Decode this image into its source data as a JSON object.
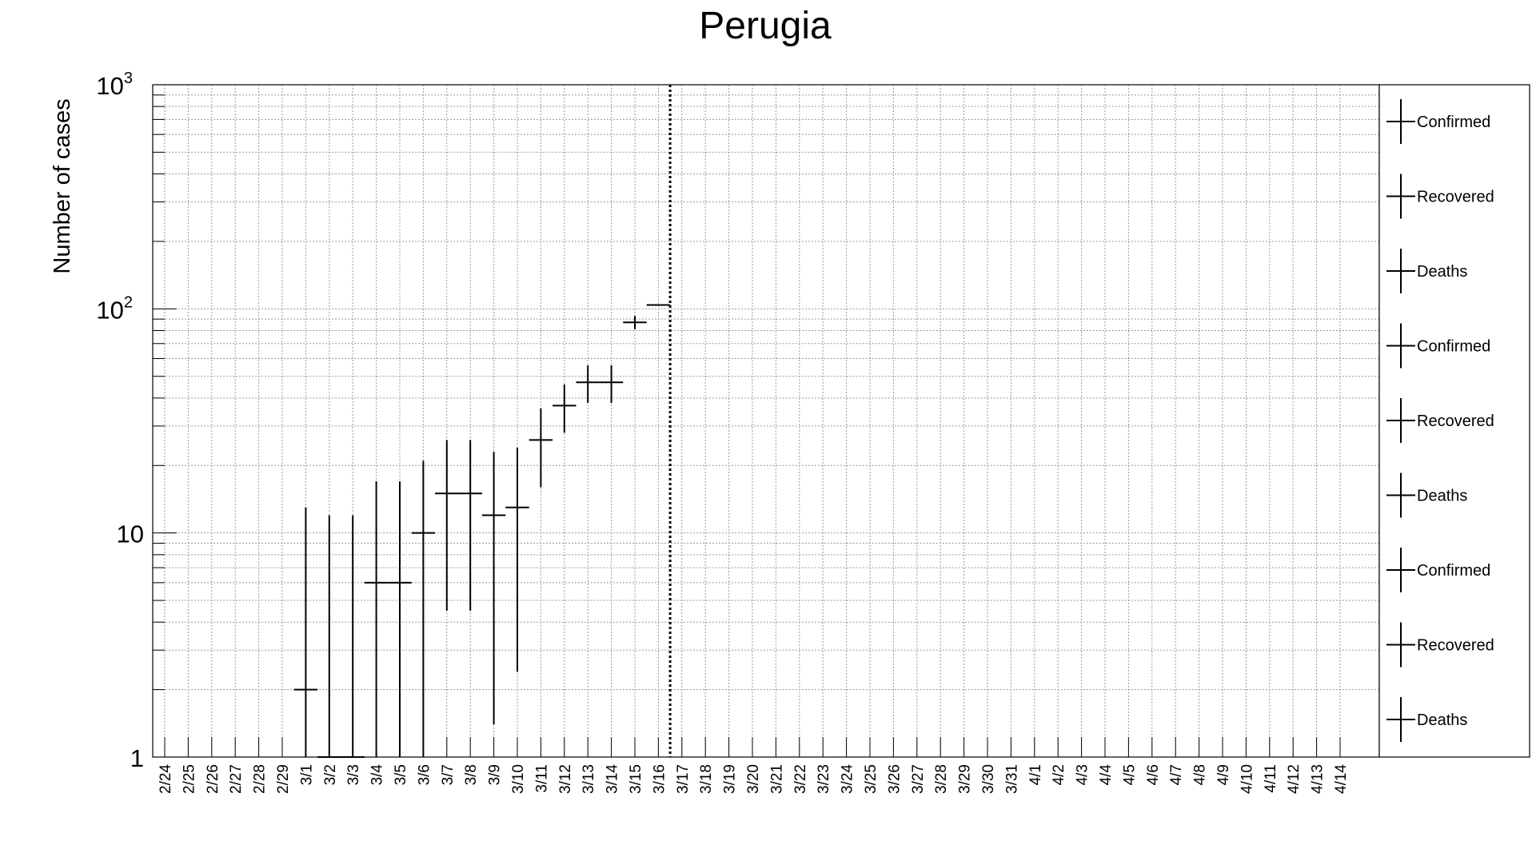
{
  "chart_data": {
    "type": "scatter",
    "title": "Perugia",
    "xlabel": "",
    "ylabel": "Number of cases",
    "yscale": "log",
    "ylim": [
      1,
      1000
    ],
    "grid": true,
    "legend_position": "right",
    "y_ticks": [
      {
        "value": 1,
        "base": "1",
        "exp": ""
      },
      {
        "value": 10,
        "base": "10",
        "exp": ""
      },
      {
        "value": 100,
        "base": "10",
        "exp": "2"
      },
      {
        "value": 1000,
        "base": "10",
        "exp": "3"
      }
    ],
    "categories": [
      "2/24",
      "2/25",
      "2/26",
      "2/27",
      "2/28",
      "2/29",
      "3/1",
      "3/2",
      "3/3",
      "3/4",
      "3/5",
      "3/6",
      "3/7",
      "3/8",
      "3/9",
      "3/10",
      "3/11",
      "3/12",
      "3/13",
      "3/14",
      "3/15",
      "3/16",
      "3/17",
      "3/18",
      "3/19",
      "3/20",
      "3/21",
      "3/22",
      "3/23",
      "3/24",
      "3/25",
      "3/26",
      "3/27",
      "3/28",
      "3/29",
      "3/30",
      "3/31",
      "4/1",
      "4/2",
      "4/3",
      "4/4",
      "4/5",
      "4/6",
      "4/7",
      "4/8",
      "4/9",
      "4/10",
      "4/11",
      "4/12",
      "4/13",
      "4/14"
    ],
    "marker_line": {
      "date": "3/17"
    },
    "series": [
      {
        "name": "Confirmed",
        "points": [
          {
            "x": "3/1",
            "y": 2,
            "ylow": 1,
            "yhigh": 13
          },
          {
            "x": "3/2",
            "y": 1,
            "ylow": 1,
            "yhigh": 12
          },
          {
            "x": "3/3",
            "y": 1,
            "ylow": 1,
            "yhigh": 12
          },
          {
            "x": "3/4",
            "y": 6,
            "ylow": 1,
            "yhigh": 17
          },
          {
            "x": "3/5",
            "y": 6,
            "ylow": 1,
            "yhigh": 17
          },
          {
            "x": "3/6",
            "y": 10,
            "ylow": 1,
            "yhigh": 21
          },
          {
            "x": "3/7",
            "y": 15,
            "ylow": 4.5,
            "yhigh": 26
          },
          {
            "x": "3/8",
            "y": 15,
            "ylow": 4.5,
            "yhigh": 26
          },
          {
            "x": "3/9",
            "y": 12,
            "ylow": 1.4,
            "yhigh": 23
          },
          {
            "x": "3/10",
            "y": 13,
            "ylow": 2.4,
            "yhigh": 24
          },
          {
            "x": "3/11",
            "y": 26,
            "ylow": 16,
            "yhigh": 36
          },
          {
            "x": "3/12",
            "y": 37,
            "ylow": 28,
            "yhigh": 46
          },
          {
            "x": "3/13",
            "y": 47,
            "ylow": 38,
            "yhigh": 56
          },
          {
            "x": "3/14",
            "y": 47,
            "ylow": 38,
            "yhigh": 56
          },
          {
            "x": "3/15",
            "y": 87,
            "ylow": 81,
            "yhigh": 93
          },
          {
            "x": "3/16",
            "y": 104,
            "ylow": 104,
            "yhigh": 104
          }
        ]
      }
    ],
    "legend": [
      "Confirmed",
      "Recovered",
      "Deaths",
      "Confirmed",
      "Recovered",
      "Deaths",
      "Confirmed",
      "Recovered",
      "Deaths"
    ]
  }
}
